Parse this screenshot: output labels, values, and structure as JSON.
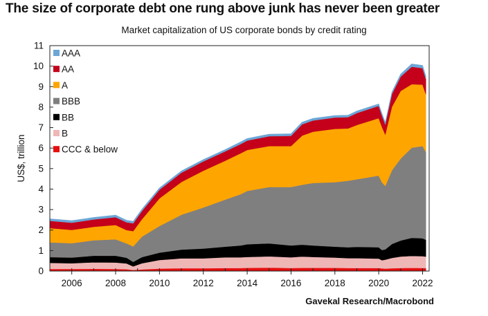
{
  "title": "The size of corporate debt one rung above junk has never been greater",
  "subtitle": "Market capitalization of US corporate bonds by credit rating",
  "source": "Gavekal Research/Macrobond",
  "chart_data": {
    "type": "area",
    "stacked": true,
    "title": "The size of corporate debt one rung above junk has never been greater",
    "subtitle": "Market capitalization of US corporate bonds by credit rating",
    "xlabel": "",
    "ylabel": "US$, trillion",
    "xlim": [
      2005.0,
      2022.3
    ],
    "ylim": [
      0,
      11
    ],
    "x_ticks": [
      "2006",
      "2008",
      "2010",
      "2012",
      "2014",
      "2016",
      "2018",
      "2020",
      "2022"
    ],
    "y_ticks": [
      "0",
      "1",
      "2",
      "3",
      "4",
      "5",
      "6",
      "7",
      "8",
      "9",
      "10",
      "11"
    ],
    "legend_position": "top-left",
    "grid": false,
    "x": [
      2005.0,
      2006.0,
      2007.0,
      2008.0,
      2008.5,
      2008.8,
      2009.2,
      2010.0,
      2011.0,
      2012.0,
      2013.0,
      2013.7,
      2014.0,
      2015.0,
      2016.0,
      2016.5,
      2017.0,
      2018.0,
      2018.6,
      2019.0,
      2020.0,
      2020.15,
      2020.3,
      2020.6,
      2021.0,
      2021.5,
      2022.0,
      2022.15
    ],
    "series": [
      {
        "name": "CCC & below",
        "color": "#e60f0f",
        "values": [
          0.1,
          0.1,
          0.11,
          0.1,
          0.09,
          0.05,
          0.08,
          0.12,
          0.14,
          0.14,
          0.15,
          0.15,
          0.16,
          0.17,
          0.15,
          0.16,
          0.16,
          0.16,
          0.15,
          0.15,
          0.15,
          0.13,
          0.12,
          0.14,
          0.15,
          0.16,
          0.15,
          0.15
        ]
      },
      {
        "name": "B",
        "color": "#efb6b6",
        "values": [
          0.3,
          0.28,
          0.32,
          0.32,
          0.28,
          0.18,
          0.3,
          0.42,
          0.48,
          0.48,
          0.52,
          0.52,
          0.53,
          0.55,
          0.52,
          0.55,
          0.53,
          0.5,
          0.48,
          0.48,
          0.46,
          0.4,
          0.44,
          0.5,
          0.56,
          0.58,
          0.58,
          0.56
        ]
      },
      {
        "name": "BB",
        "color": "#000000",
        "values": [
          0.28,
          0.28,
          0.32,
          0.33,
          0.28,
          0.22,
          0.3,
          0.36,
          0.43,
          0.48,
          0.52,
          0.58,
          0.62,
          0.63,
          0.58,
          0.58,
          0.56,
          0.53,
          0.53,
          0.55,
          0.55,
          0.5,
          0.5,
          0.68,
          0.78,
          0.88,
          0.87,
          0.82
        ]
      },
      {
        "name": "BBB",
        "color": "#7f7f7f",
        "values": [
          0.72,
          0.7,
          0.75,
          0.8,
          0.7,
          0.75,
          1.0,
          1.3,
          1.7,
          2.0,
          2.3,
          2.5,
          2.6,
          2.75,
          2.85,
          2.92,
          3.05,
          3.15,
          3.25,
          3.3,
          3.5,
          3.3,
          3.1,
          3.6,
          4.0,
          4.4,
          4.5,
          4.3
        ]
      },
      {
        "name": "A",
        "color": "#ffa500",
        "values": [
          0.7,
          0.65,
          0.66,
          0.7,
          0.65,
          0.75,
          0.85,
          1.35,
          1.6,
          1.8,
          1.9,
          2.0,
          2.0,
          2.0,
          2.0,
          2.4,
          2.5,
          2.6,
          2.55,
          2.65,
          2.8,
          2.7,
          2.5,
          3.1,
          3.3,
          3.1,
          3.0,
          2.8
        ]
      },
      {
        "name": "AA",
        "color": "#c4001a",
        "values": [
          0.35,
          0.35,
          0.36,
          0.38,
          0.38,
          0.38,
          0.4,
          0.42,
          0.45,
          0.45,
          0.45,
          0.45,
          0.46,
          0.48,
          0.5,
          0.55,
          0.55,
          0.55,
          0.55,
          0.58,
          0.6,
          0.55,
          0.5,
          0.62,
          0.7,
          0.85,
          0.8,
          0.75
        ]
      },
      {
        "name": "AAA",
        "color": "#6ca6d6",
        "values": [
          0.1,
          0.1,
          0.1,
          0.1,
          0.1,
          0.1,
          0.09,
          0.09,
          0.09,
          0.09,
          0.09,
          0.1,
          0.1,
          0.1,
          0.1,
          0.1,
          0.1,
          0.1,
          0.1,
          0.1,
          0.1,
          0.1,
          0.1,
          0.1,
          0.12,
          0.14,
          0.14,
          0.14
        ]
      }
    ]
  }
}
